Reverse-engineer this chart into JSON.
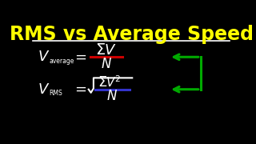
{
  "background_color": "#000000",
  "title": "RMS vs Average Speed",
  "title_color": "#FFFF00",
  "title_fontsize": 17,
  "formula_color": "#FFFFFF",
  "separator_line_color": "#FFFFFF",
  "fraction_line1_color": "#CC0000",
  "fraction_line2_color": "#3333CC",
  "arrow_color": "#00AA00",
  "xlim": [
    0,
    10
  ],
  "ylim": [
    0,
    6
  ]
}
